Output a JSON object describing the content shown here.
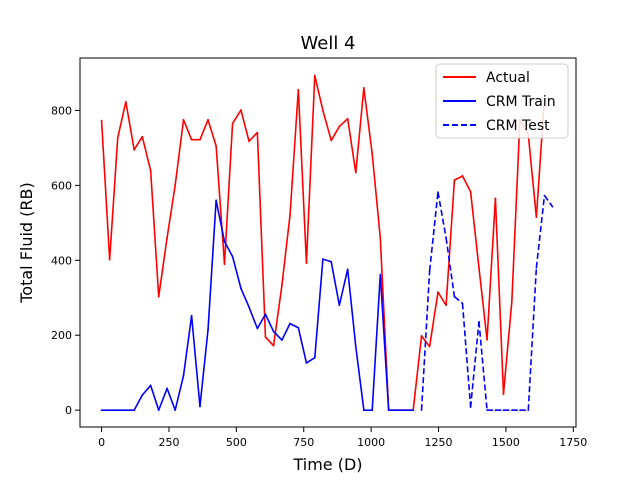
{
  "chart_data": {
    "type": "line",
    "title": "Well 4",
    "xlabel": "Time (D)",
    "ylabel": "Total Fluid (RB)",
    "xlim": [
      -80,
      1760
    ],
    "ylim": [
      -45,
      940
    ],
    "grid": false,
    "legend_position": "top-right",
    "x_ticks": [
      0,
      250,
      500,
      750,
      1000,
      1250,
      1500,
      1750
    ],
    "y_ticks": [
      0,
      200,
      400,
      600,
      800
    ],
    "x_tick_labels": [
      "0",
      "250",
      "500",
      "750",
      "1000",
      "1250",
      "1500",
      "1750"
    ],
    "y_tick_labels": [
      "0",
      "200",
      "400",
      "600",
      "800"
    ],
    "series": [
      {
        "name": "Actual",
        "color": "#ff0000",
        "dash": "solid",
        "points": [
          [
            0,
            773
          ],
          [
            30,
            402
          ],
          [
            60,
            727
          ],
          [
            90,
            823
          ],
          [
            121,
            695
          ],
          [
            151,
            730
          ],
          [
            182,
            640
          ],
          [
            212,
            303
          ],
          [
            243,
            460
          ],
          [
            273,
            600
          ],
          [
            304,
            775
          ],
          [
            334,
            722
          ],
          [
            365,
            722
          ],
          [
            395,
            775
          ],
          [
            425,
            705
          ],
          [
            456,
            390
          ],
          [
            486,
            765
          ],
          [
            517,
            801
          ],
          [
            547,
            718
          ],
          [
            578,
            741
          ],
          [
            608,
            195
          ],
          [
            638,
            172
          ],
          [
            669,
            333
          ],
          [
            699,
            520
          ],
          [
            730,
            855
          ],
          [
            760,
            393
          ],
          [
            791,
            893
          ],
          [
            821,
            800
          ],
          [
            852,
            720
          ],
          [
            882,
            757
          ],
          [
            913,
            778
          ],
          [
            943,
            634
          ],
          [
            973,
            860
          ],
          [
            1004,
            684
          ],
          [
            1034,
            460
          ],
          [
            1065,
            0
          ],
          [
            1095,
            0
          ],
          [
            1126,
            0
          ],
          [
            1156,
            0
          ],
          [
            1187,
            198
          ],
          [
            1217,
            170
          ],
          [
            1248,
            315
          ],
          [
            1278,
            280
          ],
          [
            1309,
            614
          ],
          [
            1339,
            625
          ],
          [
            1369,
            583
          ],
          [
            1400,
            380
          ],
          [
            1430,
            188
          ],
          [
            1461,
            565
          ],
          [
            1491,
            43
          ],
          [
            1522,
            290
          ],
          [
            1552,
            775
          ],
          [
            1583,
            735
          ],
          [
            1613,
            515
          ],
          [
            1643,
            832
          ]
        ]
      },
      {
        "name": "CRM Train",
        "color": "#0000ff",
        "dash": "solid",
        "points": [
          [
            0,
            0
          ],
          [
            30,
            0
          ],
          [
            60,
            0
          ],
          [
            90,
            0
          ],
          [
            121,
            0
          ],
          [
            151,
            40
          ],
          [
            182,
            66
          ],
          [
            212,
            0
          ],
          [
            243,
            58
          ],
          [
            273,
            0
          ],
          [
            304,
            92
          ],
          [
            334,
            252
          ],
          [
            365,
            10
          ],
          [
            395,
            215
          ],
          [
            425,
            560
          ],
          [
            456,
            450
          ],
          [
            486,
            410
          ],
          [
            517,
            325
          ],
          [
            547,
            275
          ],
          [
            578,
            218
          ],
          [
            608,
            256
          ],
          [
            638,
            210
          ],
          [
            669,
            187
          ],
          [
            699,
            231
          ],
          [
            730,
            220
          ],
          [
            760,
            126
          ],
          [
            791,
            140
          ],
          [
            821,
            403
          ],
          [
            852,
            396
          ],
          [
            882,
            280
          ],
          [
            913,
            376
          ],
          [
            943,
            170
          ],
          [
            973,
            0
          ],
          [
            1004,
            0
          ],
          [
            1034,
            362
          ],
          [
            1065,
            0
          ],
          [
            1095,
            0
          ],
          [
            1126,
            0
          ],
          [
            1156,
            0
          ]
        ]
      },
      {
        "name": "CRM Test",
        "color": "#0000ff",
        "dash": "dashed",
        "points": [
          [
            1187,
            0
          ],
          [
            1217,
            372
          ],
          [
            1248,
            582
          ],
          [
            1278,
            460
          ],
          [
            1309,
            303
          ],
          [
            1339,
            285
          ],
          [
            1369,
            8
          ],
          [
            1400,
            236
          ],
          [
            1430,
            0
          ],
          [
            1461,
            0
          ],
          [
            1491,
            0
          ],
          [
            1522,
            0
          ],
          [
            1552,
            0
          ],
          [
            1583,
            0
          ],
          [
            1613,
            380
          ],
          [
            1643,
            573
          ],
          [
            1673,
            543
          ]
        ]
      }
    ]
  }
}
